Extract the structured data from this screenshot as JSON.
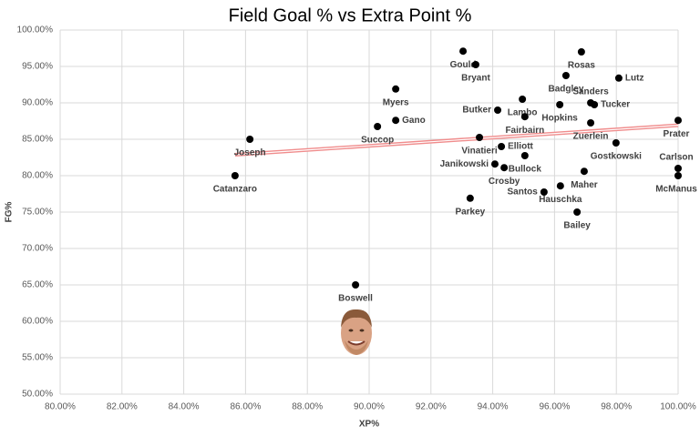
{
  "chart_data": {
    "type": "scatter",
    "title": "Field Goal % vs Extra Point %",
    "x_label": "XP%",
    "y_label": "FG%",
    "labels": [
      "Gould",
      "Rosas",
      "Bryant",
      "Badgley",
      "Lutz",
      "Myers",
      "Lambo",
      "Hopkins",
      "Sanders",
      "Tucker",
      "Butker",
      "Fairbairn",
      "Gano",
      "Succop",
      "Zuerlein",
      "Prater",
      "Joseph",
      "Vinatieri",
      "Gostkowski",
      "Elliott",
      "Bullock",
      "Janikowski",
      "Crosby",
      "Carlson",
      "Maher",
      "McManus",
      "Catanzaro",
      "Hauschka",
      "Santos",
      "Parkey",
      "Bailey",
      "Boswell"
    ],
    "x": [
      93.04,
      96.87,
      93.45,
      96.37,
      98.08,
      90.86,
      94.96,
      96.17,
      97.17,
      97.29,
      94.16,
      95.04,
      90.86,
      90.27,
      97.17,
      100,
      86.14,
      93.57,
      97.99,
      94.28,
      95.04,
      94.07,
      94.37,
      100,
      96.96,
      100,
      85.66,
      96.19,
      95.66,
      93.27,
      96.73,
      89.56
    ],
    "values": [
      97.1,
      97.0,
      95.25,
      93.75,
      93.4,
      91.9,
      90.5,
      89.75,
      90.0,
      89.75,
      89.0,
      88.1,
      87.6,
      86.75,
      87.25,
      87.6,
      85.0,
      85.25,
      84.5,
      84.0,
      82.75,
      81.6,
      81.1,
      81.0,
      80.6,
      80.0,
      80.0,
      78.6,
      77.75,
      76.9,
      75.0,
      65.0
    ],
    "color": "#000000",
    "trendline": true,
    "trendline_color": "#f08c8c",
    "grid": true,
    "xlim": [
      80,
      100
    ],
    "ylim": [
      50,
      100
    ],
    "xticks": [
      {
        "value": 80,
        "label": "80.00%"
      },
      {
        "value": 82,
        "label": "82.00%"
      },
      {
        "value": 84,
        "label": "84.00%"
      },
      {
        "value": 86,
        "label": "86.00%"
      },
      {
        "value": 88,
        "label": "88.00%"
      },
      {
        "value": 90,
        "label": "90.00%"
      },
      {
        "value": 92,
        "label": "92.00%"
      },
      {
        "value": 94,
        "label": "94.00%"
      },
      {
        "value": 96,
        "label": "96.00%"
      },
      {
        "value": 98,
        "label": "98.00%"
      },
      {
        "value": 100,
        "label": "100.00%"
      }
    ],
    "yticks": [
      {
        "value": 50,
        "label": "50.00%"
      },
      {
        "value": 55,
        "label": "55.00%"
      },
      {
        "value": 60,
        "label": "60.00%"
      },
      {
        "value": 65,
        "label": "65.00%"
      },
      {
        "value": 70,
        "label": "70.00%"
      },
      {
        "value": 75,
        "label": "75.00%"
      },
      {
        "value": 80,
        "label": "80.00%"
      },
      {
        "value": 85,
        "label": "85.00%"
      },
      {
        "value": 90,
        "label": "90.00%"
      },
      {
        "value": 95,
        "label": "95.00%"
      },
      {
        "value": 100,
        "label": "100.00%"
      }
    ]
  }
}
